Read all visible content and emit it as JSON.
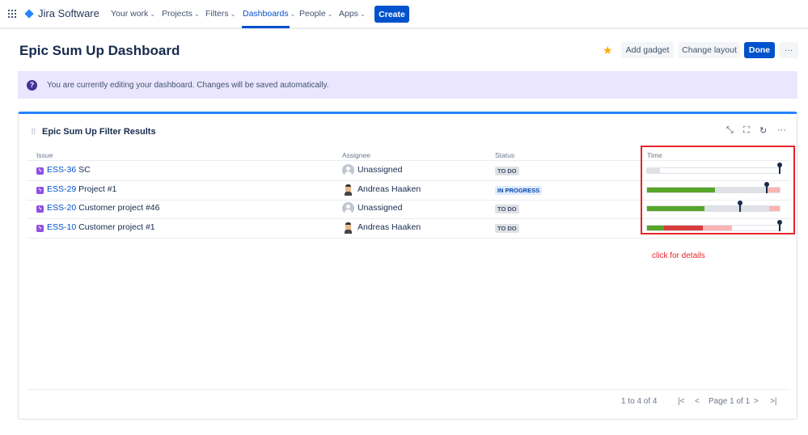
{
  "nav": {
    "app_name": "Jira Software",
    "items": [
      {
        "label": "Your work"
      },
      {
        "label": "Projects"
      },
      {
        "label": "Filters"
      },
      {
        "label": "Dashboards",
        "active": true
      },
      {
        "label": "People"
      },
      {
        "label": "Apps"
      }
    ],
    "create_label": "Create"
  },
  "header": {
    "title": "Epic Sum Up Dashboard",
    "add_gadget": "Add gadget",
    "change_layout": "Change layout",
    "done": "Done",
    "more": "···"
  },
  "banner": {
    "text": "You are currently editing your dashboard. Changes will be saved automatically."
  },
  "gadget": {
    "title": "Epic Sum Up Filter Results",
    "columns": {
      "issue": "Issue",
      "assignee": "Assignee",
      "status": "Status",
      "time": "Time"
    },
    "rows": [
      {
        "key": "ESS-36",
        "summary": "SC",
        "assignee": "Unassigned",
        "avatar": "unassigned",
        "status": "TO DO",
        "time_bars": {
          "segments": [
            {
              "color": "#dfe1e6",
              "from": 0,
              "to": 10
            }
          ],
          "marker": 100
        }
      },
      {
        "key": "ESS-29",
        "summary": "Project #1",
        "assignee": "Andreas Haaken",
        "avatar": "user",
        "status": "IN PROGRESS",
        "time_bars": {
          "segments": [
            {
              "color": "#57a52a",
              "from": 0,
              "to": 51
            },
            {
              "color": "#dfe1e6",
              "from": 51,
              "to": 90
            },
            {
              "color": "#ffb3b3",
              "from": 90,
              "to": 100
            }
          ],
          "marker": 90
        }
      },
      {
        "key": "ESS-20",
        "summary": "Customer project #46",
        "assignee": "Unassigned",
        "avatar": "unassigned",
        "status": "TO DO",
        "time_bars": {
          "segments": [
            {
              "color": "#57a52a",
              "from": 0,
              "to": 43
            },
            {
              "color": "#dfe1e6",
              "from": 43,
              "to": 92
            },
            {
              "color": "#ffb3b3",
              "from": 92,
              "to": 100
            }
          ],
          "marker": 70
        }
      },
      {
        "key": "ESS-10",
        "summary": "Customer project #1",
        "assignee": "Andreas Haaken",
        "avatar": "user",
        "status": "TO DO",
        "time_bars": {
          "segments": [
            {
              "color": "#57a52a",
              "from": 0,
              "to": 13
            },
            {
              "color": "#d73c3c",
              "from": 13,
              "to": 42
            },
            {
              "color": "#ffb3b3",
              "from": 42,
              "to": 64
            }
          ],
          "marker": 100
        }
      }
    ],
    "pagination": {
      "count": "1 to 4 of 4",
      "page": "Page 1 of 1"
    }
  },
  "annotation": {
    "text": "click for details",
    "color": "#e5252a"
  }
}
